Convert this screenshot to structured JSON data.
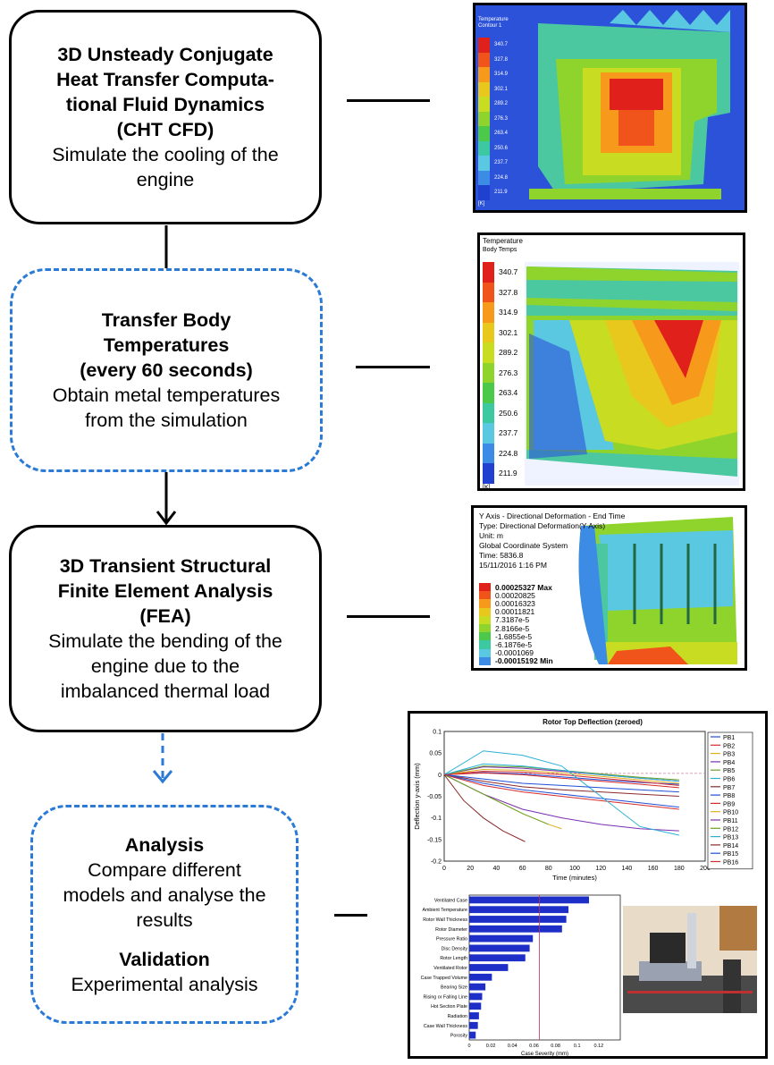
{
  "steps": {
    "cfd": {
      "title": "3D Unsteady Conjugate Heat Transfer Computa-tional Fluid Dynamics (CHT CFD)",
      "title_lines": [
        "3D Unsteady Conjugate",
        "Heat Transfer Computa-",
        "tional Fluid Dynamics",
        "(CHT CFD)"
      ],
      "desc_lines": [
        "Simulate the cooling of the",
        "engine"
      ]
    },
    "transfer": {
      "title_lines": [
        "Transfer Body",
        "Temperatures",
        "(every 60 seconds)"
      ],
      "desc_lines": [
        "Obtain metal temperatures",
        "from the simulation"
      ]
    },
    "fea": {
      "title_lines": [
        "3D Transient Structural",
        "Finite Element Analysis",
        "(FEA)"
      ],
      "desc_lines": [
        "Simulate the bending of the",
        "engine due to the",
        "imbalanced thermal load"
      ]
    },
    "analysis": {
      "title": "Analysis",
      "desc_lines": [
        "Compare different",
        "models and analyse the",
        "results"
      ],
      "title2": "Validation",
      "desc2": "Experimental analysis"
    }
  },
  "cfd_panel": {
    "title": "Temperature",
    "subtitle": "Contour 1",
    "unit": "[K]",
    "levels": [
      "340.7",
      "327.8",
      "314.9",
      "302.1",
      "289.2",
      "276.3",
      "263.4",
      "250.6",
      "237.7",
      "224.8",
      "211.9"
    ]
  },
  "temps_panel": {
    "title": "Temperature",
    "subtitle": "Body Temps",
    "unit": "[K]",
    "levels": [
      "340.7",
      "327.8",
      "314.9",
      "302.1",
      "289.2",
      "276.3",
      "263.4",
      "250.6",
      "237.7",
      "224.8",
      "211.9"
    ]
  },
  "deform_panel": {
    "header": [
      "Y Axis - Directional Deformation - End Time",
      "Type: Directional Deformation(Y Axis)",
      "Unit: m",
      "Global Coordinate System",
      "Time: 5836.8",
      "15/11/2016 1:16 PM"
    ],
    "levels": [
      "0.00025327 Max",
      "0.00020825",
      "0.00016323",
      "0.00011821",
      "7.3187e-5",
      "2.8166e-5",
      "-1.6855e-5",
      "-6.1876e-5",
      "-0.0001069",
      "-0.00015192 Min"
    ]
  },
  "legend_colors": [
    "#e0201a",
    "#f0541a",
    "#f79a1c",
    "#e8c81c",
    "#c8dc22",
    "#8fd42c",
    "#4cc84a",
    "#3cc8a0",
    "#5ac8e0",
    "#3c8ce6",
    "#2040d0"
  ],
  "chart_data": [
    {
      "type": "line",
      "title": "Rotor Top Deflection (zeroed)",
      "xlabel": "Time (minutes)",
      "ylabel": "Deflection y-axis (mm)",
      "xlim": [
        0,
        200
      ],
      "ylim": [
        -0.2,
        0.1
      ],
      "xticks": [
        "0",
        "20",
        "40",
        "60",
        "80",
        "100",
        "120",
        "140",
        "160",
        "180",
        "200"
      ],
      "yticks": [
        "0.1",
        "0.05",
        "0",
        "-0.05",
        "-0.1",
        "-0.15",
        "-0.2"
      ],
      "legend_position": "right",
      "reference_line": 0.003,
      "series": [
        {
          "name": "PB1",
          "color": "#1f4fd6",
          "x": [
            0,
            30,
            60,
            90,
            120,
            150,
            180
          ],
          "y": [
            0,
            0.005,
            0.002,
            -0.005,
            -0.012,
            -0.018,
            -0.022
          ]
        },
        {
          "name": "PB2",
          "color": "#d62a2a",
          "x": [
            0,
            30,
            60,
            90,
            120,
            150,
            180
          ],
          "y": [
            0,
            0.008,
            0.006,
            0.0,
            -0.008,
            -0.016,
            -0.025
          ]
        },
        {
          "name": "PB3",
          "color": "#e0b020",
          "x": [
            0,
            30,
            60,
            90,
            120,
            150,
            180
          ],
          "y": [
            0,
            0.012,
            0.01,
            0.004,
            -0.004,
            -0.012,
            -0.02
          ]
        },
        {
          "name": "PB4",
          "color": "#7a2fb0",
          "x": [
            0,
            30,
            60,
            90,
            120,
            150,
            180
          ],
          "y": [
            0,
            0.018,
            0.015,
            0.008,
            0.0,
            -0.008,
            -0.015
          ]
        },
        {
          "name": "PB5",
          "color": "#6aa22a",
          "x": [
            0,
            30,
            60,
            90,
            120,
            150,
            180
          ],
          "y": [
            0,
            0.02,
            0.018,
            0.01,
            0.002,
            -0.006,
            -0.012
          ]
        },
        {
          "name": "PB6",
          "color": "#2ab0d6",
          "x": [
            0,
            30,
            60,
            90,
            120,
            150,
            180
          ],
          "y": [
            0,
            0.025,
            0.02,
            0.01,
            0.0,
            -0.008,
            -0.015
          ]
        },
        {
          "name": "PB7",
          "color": "#8a2a2a",
          "x": [
            0,
            30,
            60,
            90,
            120,
            150,
            180
          ],
          "y": [
            0,
            -0.015,
            -0.028,
            -0.035,
            -0.04,
            -0.045,
            -0.05
          ]
        },
        {
          "name": "PB8",
          "color": "#1f4fd6",
          "x": [
            0,
            30,
            60,
            90,
            120,
            150,
            180
          ],
          "y": [
            0,
            -0.02,
            -0.035,
            -0.045,
            -0.055,
            -0.065,
            -0.075
          ]
        },
        {
          "name": "PB9",
          "color": "#d62a2a",
          "x": [
            0,
            30,
            60,
            90,
            120,
            150,
            180
          ],
          "y": [
            0,
            -0.025,
            -0.04,
            -0.05,
            -0.06,
            -0.07,
            -0.08
          ]
        },
        {
          "name": "PB10",
          "color": "#e0b020",
          "x": [
            0,
            20,
            40,
            60,
            80,
            90
          ],
          "y": [
            0,
            -0.03,
            -0.06,
            -0.09,
            -0.115,
            -0.125
          ]
        },
        {
          "name": "PB11",
          "color": "#7a2fb0",
          "x": [
            0,
            30,
            60,
            90,
            120,
            150,
            180
          ],
          "y": [
            0,
            -0.045,
            -0.08,
            -0.1,
            -0.115,
            -0.125,
            -0.13
          ]
        },
        {
          "name": "PB12",
          "color": "#6aa22a",
          "x": [
            0,
            20,
            40,
            60,
            80
          ],
          "y": [
            0,
            -0.03,
            -0.06,
            -0.09,
            -0.115
          ]
        },
        {
          "name": "PB13",
          "color": "#2ab0d6",
          "x": [
            0,
            30,
            60,
            90,
            120,
            150,
            180
          ],
          "y": [
            0,
            0.055,
            0.045,
            0.02,
            -0.05,
            -0.12,
            -0.14
          ]
        },
        {
          "name": "PB14",
          "color": "#8a2a2a",
          "x": [
            0,
            15,
            30,
            45,
            62
          ],
          "y": [
            0,
            -0.06,
            -0.1,
            -0.13,
            -0.155
          ]
        },
        {
          "name": "PB15",
          "color": "#1f4fd6",
          "x": [
            0,
            30,
            60,
            90,
            120,
            150,
            180
          ],
          "y": [
            0,
            -0.01,
            -0.02,
            -0.025,
            -0.03,
            -0.035,
            -0.04
          ]
        },
        {
          "name": "PB16",
          "color": "#d62a2a",
          "x": [
            0,
            30,
            60,
            90,
            120,
            150,
            180
          ],
          "y": [
            0,
            0.004,
            0.0,
            -0.008,
            -0.015,
            -0.022,
            -0.03
          ]
        }
      ]
    },
    {
      "type": "bar",
      "orientation": "horizontal",
      "xlabel": "Case Severity (mm)",
      "xlim": [
        0,
        0.14
      ],
      "xticks": [
        "0",
        "0.02",
        "0.04",
        "0.06",
        "0.08",
        "0.1",
        "0.12"
      ],
      "reference_line": 0.065,
      "categories": [
        "Ventilated Case",
        "Ambient Temperature",
        "Rotor Wall Thickness",
        "Rotor Diameter",
        "Pressure Ratio",
        "Disc Density",
        "Rotor Length",
        "Ventilated Rotor",
        "Case Trapped Volume",
        "Bearing Size",
        "Rising or Falling Line",
        "Hot Section Plate",
        "Radiation",
        "Case Wall Thickness",
        "Porosity"
      ],
      "values": [
        0.111,
        0.092,
        0.09,
        0.086,
        0.059,
        0.056,
        0.052,
        0.036,
        0.021,
        0.015,
        0.012,
        0.011,
        0.009,
        0.008,
        0.006
      ]
    }
  ]
}
